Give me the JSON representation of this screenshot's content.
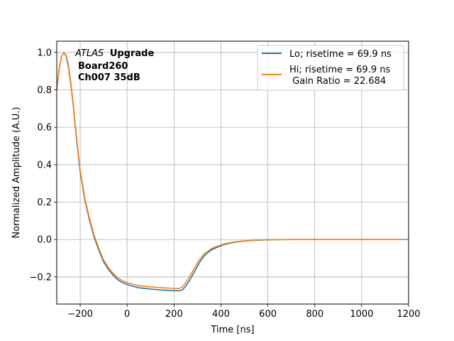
{
  "chart_data": {
    "type": "line",
    "title": "",
    "xlabel": "Time [ns]",
    "ylabel": "Normalized Amplitude (A.U.)",
    "xlim": [
      -300,
      1200
    ],
    "ylim": [
      -0.345,
      1.06
    ],
    "grid": true,
    "legend_placement": "top-right",
    "x_ticks": [
      -200,
      0,
      200,
      400,
      600,
      800,
      1000,
      1200
    ],
    "x_tick_labels": [
      "−200",
      "0",
      "200",
      "400",
      "600",
      "800",
      "1000",
      "1200"
    ],
    "y_ticks": [
      -0.2,
      0.0,
      0.2,
      0.4,
      0.6,
      0.8,
      1.0
    ],
    "y_tick_labels": [
      "−0.2",
      "0.0",
      "0.2",
      "0.4",
      "0.6",
      "0.8",
      "1.0"
    ],
    "annotation": {
      "line1_italic": "ATLAS",
      "line1_bold": "Upgrade",
      "line2": "Board260",
      "line3": "Ch007 35dB"
    },
    "series": [
      {
        "name": "Lo; risetime = 69.9 ns",
        "color": "#1f77b4",
        "x": [
          -300,
          -290,
          -280,
          -270,
          -260,
          -250,
          -240,
          -230,
          -220,
          -210,
          -200,
          -180,
          -160,
          -140,
          -120,
          -100,
          -80,
          -60,
          -40,
          -20,
          0,
          25,
          50,
          100,
          150,
          200,
          220,
          235,
          250,
          270,
          290,
          310,
          330,
          360,
          390,
          420,
          460,
          500,
          550,
          600,
          700,
          800,
          900,
          1000,
          1100,
          1200
        ],
        "y": [
          0.8,
          0.91,
          0.975,
          1.0,
          0.98,
          0.92,
          0.83,
          0.72,
          0.59,
          0.47,
          0.36,
          0.21,
          0.1,
          0.01,
          -0.06,
          -0.12,
          -0.16,
          -0.19,
          -0.215,
          -0.23,
          -0.24,
          -0.25,
          -0.258,
          -0.265,
          -0.27,
          -0.273,
          -0.274,
          -0.27,
          -0.25,
          -0.21,
          -0.165,
          -0.12,
          -0.085,
          -0.055,
          -0.038,
          -0.025,
          -0.014,
          -0.008,
          -0.004,
          -0.002,
          0.0,
          0.0,
          0.0,
          0.0,
          0.0,
          0.0
        ]
      },
      {
        "name": "Hi; risetime = 69.9 ns\n Gain Ratio = 22.684",
        "color": "#ff7f0e",
        "x": [
          -300,
          -290,
          -280,
          -270,
          -260,
          -250,
          -240,
          -230,
          -220,
          -210,
          -200,
          -180,
          -160,
          -140,
          -120,
          -100,
          -80,
          -60,
          -40,
          -20,
          0,
          25,
          50,
          100,
          150,
          200,
          220,
          235,
          250,
          270,
          290,
          310,
          330,
          360,
          390,
          420,
          460,
          500,
          550,
          600,
          700,
          800,
          900,
          1000,
          1100,
          1200
        ],
        "y": [
          0.8,
          0.91,
          0.975,
          1.0,
          0.985,
          0.93,
          0.84,
          0.73,
          0.6,
          0.48,
          0.37,
          0.22,
          0.11,
          0.02,
          -0.05,
          -0.11,
          -0.15,
          -0.18,
          -0.205,
          -0.22,
          -0.23,
          -0.24,
          -0.247,
          -0.253,
          -0.258,
          -0.261,
          -0.262,
          -0.255,
          -0.23,
          -0.19,
          -0.145,
          -0.105,
          -0.075,
          -0.048,
          -0.033,
          -0.022,
          -0.012,
          -0.007,
          -0.003,
          -0.001,
          0.0,
          0.0,
          0.0,
          0.0,
          0.0,
          0.0
        ]
      }
    ]
  }
}
